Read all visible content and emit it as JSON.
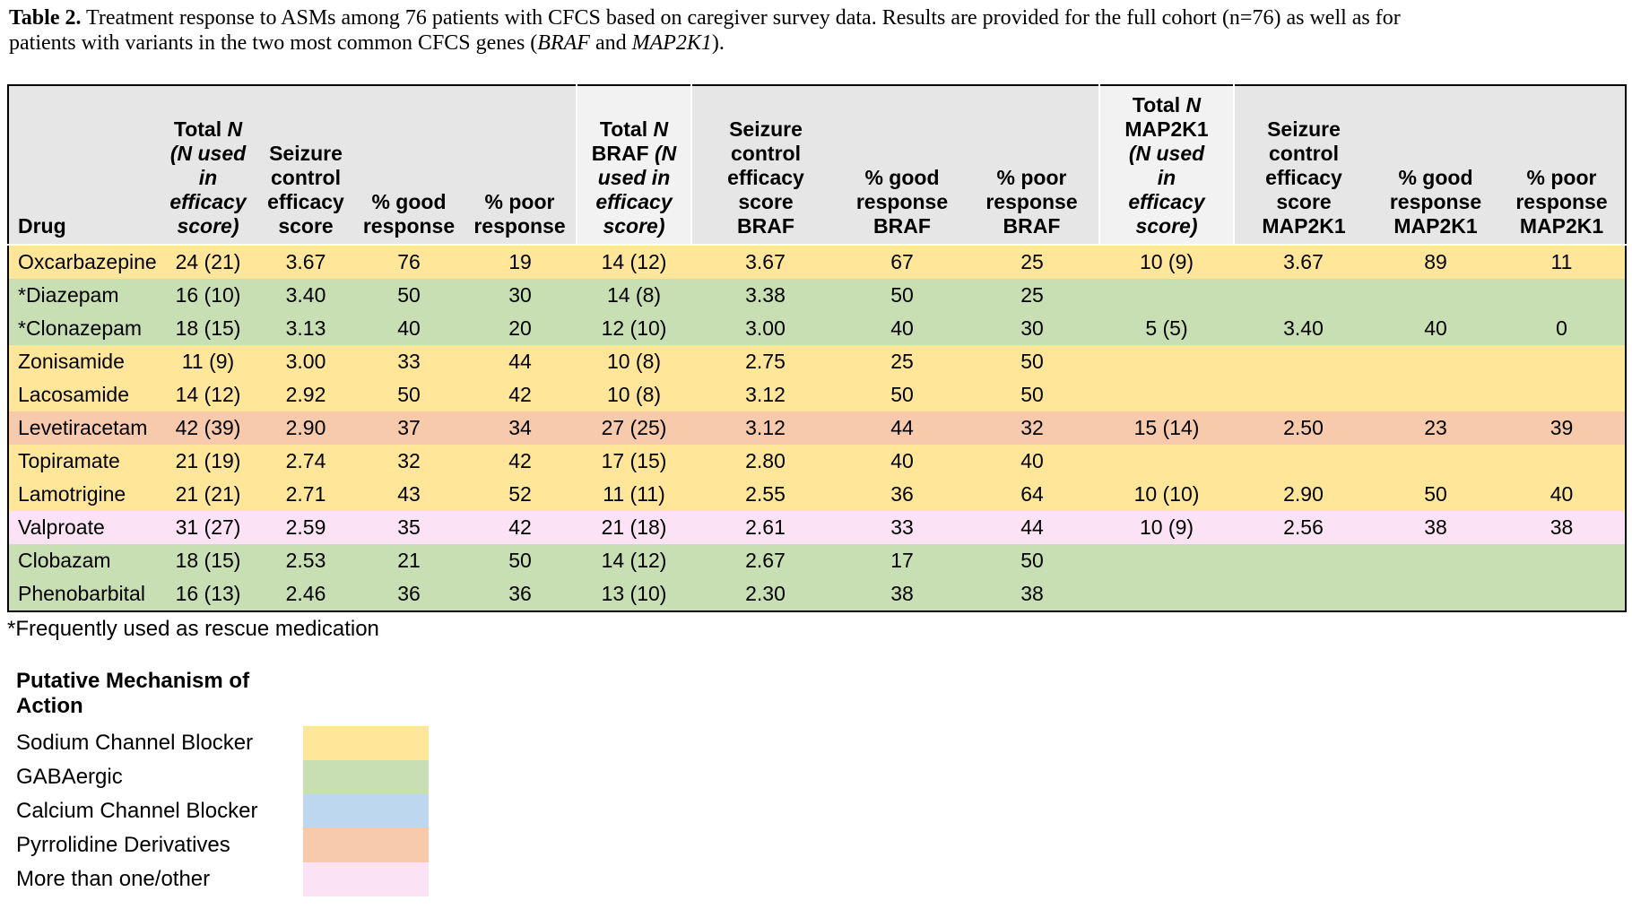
{
  "caption": {
    "label": "Table 2.",
    "line1_rest": " Treatment response to ASMs among 76 patients with CFCS based on caregiver survey data. Results are provided for the full cohort (n=76) as well as for",
    "line2_pre": "patients with variants in the two most common CFCS genes (",
    "gene1": "BRAF",
    "line2_mid": " and ",
    "gene2": "MAP2K1",
    "line2_end": ")."
  },
  "colors": {
    "header-bg": "#E7E6E6",
    "header-light-bg": "#F2F2F2",
    "table-border": "#000000"
  },
  "mechanism_colors": {
    "sodium": "#FFE699",
    "gaba": "#C7DFB2",
    "calcium": "#BDD7EE",
    "pyrrolidine": "#F7CAAC",
    "other": "#FBE2F5"
  },
  "table": {
    "headers": [
      {
        "key": "drug",
        "align": "left",
        "lines": [
          [
            {
              "t": "Drug"
            }
          ]
        ]
      },
      {
        "key": "total-n",
        "lines": [
          [
            {
              "t": "Total "
            },
            {
              "t": "N",
              "i": true
            }
          ],
          [
            {
              "t": "(N used",
              "i": true
            }
          ],
          [
            {
              "t": "in",
              "i": true
            }
          ],
          [
            {
              "t": "efficacy",
              "i": true
            }
          ],
          [
            {
              "t": "score)",
              "i": true
            }
          ]
        ]
      },
      {
        "key": "efficacy-score",
        "lines": [
          [
            {
              "t": "Seizure"
            }
          ],
          [
            {
              "t": "control"
            }
          ],
          [
            {
              "t": "efficacy"
            }
          ],
          [
            {
              "t": "score"
            }
          ]
        ]
      },
      {
        "key": "good-response",
        "lines": [
          [
            {
              "t": "% good"
            }
          ],
          [
            {
              "t": "response"
            }
          ]
        ]
      },
      {
        "key": "poor-response",
        "lines": [
          [
            {
              "t": "% poor"
            }
          ],
          [
            {
              "t": "response"
            }
          ]
        ]
      },
      {
        "key": "total-n-braf",
        "light": true,
        "lines": [
          [
            {
              "t": "Total "
            },
            {
              "t": "N",
              "i": true
            }
          ],
          [
            {
              "t": "BRAF "
            },
            {
              "t": "(N",
              "i": true
            }
          ],
          [
            {
              "t": "used in",
              "i": true
            }
          ],
          [
            {
              "t": "efficacy",
              "i": true
            }
          ],
          [
            {
              "t": "score)",
              "i": true
            }
          ]
        ]
      },
      {
        "key": "efficacy-score-braf",
        "lines": [
          [
            {
              "t": "Seizure"
            }
          ],
          [
            {
              "t": "control"
            }
          ],
          [
            {
              "t": "efficacy"
            }
          ],
          [
            {
              "t": "score"
            }
          ],
          [
            {
              "t": "BRAF"
            }
          ]
        ]
      },
      {
        "key": "good-response-braf",
        "lines": [
          [
            {
              "t": "% good"
            }
          ],
          [
            {
              "t": "response"
            }
          ],
          [
            {
              "t": "BRAF"
            }
          ]
        ]
      },
      {
        "key": "poor-response-braf",
        "lines": [
          [
            {
              "t": "% poor"
            }
          ],
          [
            {
              "t": "response"
            }
          ],
          [
            {
              "t": "BRAF"
            }
          ]
        ]
      },
      {
        "key": "total-n-map2k1",
        "light": true,
        "lines": [
          [
            {
              "t": "Total "
            },
            {
              "t": "N",
              "i": true
            }
          ],
          [
            {
              "t": "MAP2K1"
            }
          ],
          [
            {
              "t": "(N used",
              "i": true
            }
          ],
          [
            {
              "t": "in",
              "i": true
            }
          ],
          [
            {
              "t": "efficacy",
              "i": true
            }
          ],
          [
            {
              "t": "score)",
              "i": true
            }
          ]
        ]
      },
      {
        "key": "efficacy-score-map2k1",
        "lines": [
          [
            {
              "t": "Seizure"
            }
          ],
          [
            {
              "t": "control"
            }
          ],
          [
            {
              "t": "efficacy"
            }
          ],
          [
            {
              "t": "score"
            }
          ],
          [
            {
              "t": "MAP2K1"
            }
          ]
        ]
      },
      {
        "key": "good-response-map2k1",
        "lines": [
          [
            {
              "t": "% good"
            }
          ],
          [
            {
              "t": "response"
            }
          ],
          [
            {
              "t": "MAP2K1"
            }
          ]
        ]
      },
      {
        "key": "poor-response-map2k1",
        "lines": [
          [
            {
              "t": "% poor"
            }
          ],
          [
            {
              "t": "response"
            }
          ],
          [
            {
              "t": "MAP2K1"
            }
          ]
        ]
      }
    ],
    "rows": [
      {
        "drug": "Oxcarbazepine",
        "mechanism": "sodium",
        "values": [
          "24 (21)",
          "3.67",
          "76",
          "19",
          "14 (12)",
          "3.67",
          "67",
          "25",
          "10 (9)",
          "3.67",
          "89",
          "11"
        ]
      },
      {
        "drug": "*Diazepam",
        "mechanism": "gaba",
        "values": [
          "16 (10)",
          "3.40",
          "50",
          "30",
          "14 (8)",
          "3.38",
          "50",
          "25",
          "",
          "",
          "",
          ""
        ]
      },
      {
        "drug": "*Clonazepam",
        "mechanism": "gaba",
        "values": [
          "18 (15)",
          "3.13",
          "40",
          "20",
          "12 (10)",
          "3.00",
          "40",
          "30",
          "5 (5)",
          "3.40",
          "40",
          "0"
        ]
      },
      {
        "drug": "Zonisamide",
        "mechanism": "sodium",
        "values": [
          "11 (9)",
          "3.00",
          "33",
          "44",
          "10 (8)",
          "2.75",
          "25",
          "50",
          "",
          "",
          "",
          ""
        ]
      },
      {
        "drug": "Lacosamide",
        "mechanism": "sodium",
        "values": [
          "14 (12)",
          "2.92",
          "50",
          "42",
          "10 (8)",
          "3.12",
          "50",
          "50",
          "",
          "",
          "",
          ""
        ]
      },
      {
        "drug": "Levetiracetam",
        "mechanism": "pyrrolidine",
        "values": [
          "42 (39)",
          "2.90",
          "37",
          "34",
          "27 (25)",
          "3.12",
          "44",
          "32",
          "15 (14)",
          "2.50",
          "23",
          "39"
        ]
      },
      {
        "drug": "Topiramate",
        "mechanism": "sodium",
        "values": [
          "21 (19)",
          "2.74",
          "32",
          "42",
          "17 (15)",
          "2.80",
          "40",
          "40",
          "",
          "",
          "",
          ""
        ]
      },
      {
        "drug": "Lamotrigine",
        "mechanism": "sodium",
        "values": [
          "21 (21)",
          "2.71",
          "43",
          "52",
          "11 (11)",
          "2.55",
          "36",
          "64",
          "10 (10)",
          "2.90",
          "50",
          "40"
        ]
      },
      {
        "drug": "Valproate",
        "mechanism": "other",
        "values": [
          "31 (27)",
          "2.59",
          "35",
          "42",
          "21 (18)",
          "2.61",
          "33",
          "44",
          "10 (9)",
          "2.56",
          "38",
          "38"
        ]
      },
      {
        "drug": "Clobazam",
        "mechanism": "gaba",
        "values": [
          "18 (15)",
          "2.53",
          "21",
          "50",
          "14 (12)",
          "2.67",
          "17",
          "50",
          "",
          "",
          "",
          ""
        ]
      },
      {
        "drug": "Phenobarbital",
        "mechanism": "gaba",
        "values": [
          "16 (13)",
          "2.46",
          "36",
          "36",
          "13 (10)",
          "2.30",
          "38",
          "38",
          "",
          "",
          "",
          ""
        ]
      }
    ]
  },
  "footnote": "*Frequently used as rescue medication",
  "legend": {
    "title_lines": [
      "Putative Mechanism of",
      "Action"
    ],
    "items": [
      {
        "label": "Sodium Channel Blocker",
        "mechanism": "sodium"
      },
      {
        "label": "GABAergic",
        "mechanism": "gaba"
      },
      {
        "label": "Calcium Channel Blocker",
        "mechanism": "calcium"
      },
      {
        "label": "Pyrrolidine Derivatives",
        "mechanism": "pyrrolidine"
      },
      {
        "label": "More than one/other",
        "mechanism": "other"
      }
    ]
  }
}
